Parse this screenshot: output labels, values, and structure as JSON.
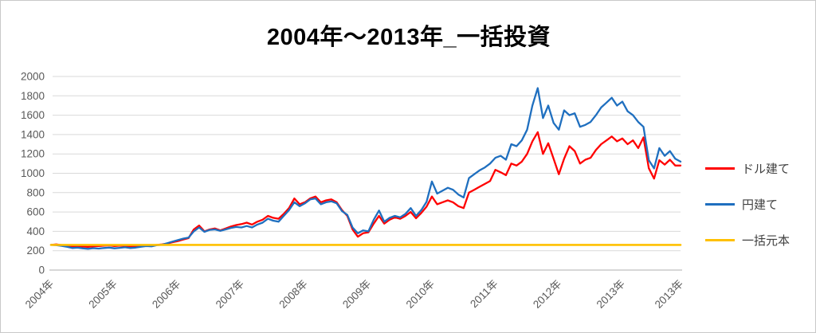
{
  "title": "2004年～2013年_一括投資",
  "legend": [
    {
      "id": "usd",
      "label": "ドル建て",
      "color": "#ff0000"
    },
    {
      "id": "jpy",
      "label": "円建て",
      "color": "#1f6fbf"
    },
    {
      "id": "principal",
      "label": "一括元本",
      "color": "#ffc000"
    }
  ],
  "colors": {
    "gridline": "#d9d9d9",
    "axis_line": "#bfbfbf",
    "axis_text": "#595959",
    "legend_text": "#404040",
    "frame_border": "#c9c9c9",
    "background": "#ffffff"
  },
  "chart_data": {
    "type": "line",
    "title": "2004年～2013年_一括投資",
    "xlabel": "",
    "ylabel": "",
    "ylim": [
      0,
      2000
    ],
    "y_tick_step": 200,
    "y_tick_labels": [
      "0",
      "200",
      "400",
      "600",
      "800",
      "1000",
      "1200",
      "1400",
      "1600",
      "1800",
      "2000"
    ],
    "grid": true,
    "legend_position": "right",
    "x_start": "2004-01",
    "x_end": "2013-12",
    "points_per_series": 120,
    "x_ticks": [
      {
        "m": 0,
        "label": "2004年"
      },
      {
        "m": 12,
        "label": "2005年"
      },
      {
        "m": 24,
        "label": "2006年"
      },
      {
        "m": 36,
        "label": "2007年"
      },
      {
        "m": 48,
        "label": "2008年"
      },
      {
        "m": 60,
        "label": "2009年"
      },
      {
        "m": 72,
        "label": "2010年"
      },
      {
        "m": 84,
        "label": "2011年"
      },
      {
        "m": 96,
        "label": "2012年"
      },
      {
        "m": 108,
        "label": "2013年"
      },
      {
        "m": 119,
        "label": "2013年"
      }
    ],
    "series": [
      {
        "name": "ドル建て",
        "color": "#ff0000",
        "stroke_width": 2.3,
        "values": [
          260,
          265,
          258,
          250,
          245,
          248,
          243,
          240,
          245,
          248,
          252,
          255,
          248,
          252,
          250,
          243,
          246,
          250,
          255,
          252,
          260,
          265,
          275,
          288,
          300,
          315,
          330,
          420,
          460,
          400,
          420,
          430,
          410,
          430,
          450,
          465,
          475,
          490,
          470,
          500,
          520,
          560,
          540,
          530,
          580,
          640,
          740,
          680,
          700,
          740,
          760,
          700,
          720,
          730,
          700,
          620,
          560,
          420,
          345,
          380,
          390,
          480,
          560,
          480,
          520,
          545,
          530,
          560,
          600,
          535,
          590,
          655,
          760,
          680,
          700,
          720,
          700,
          660,
          640,
          800,
          830,
          860,
          890,
          920,
          1035,
          1010,
          980,
          1100,
          1080,
          1120,
          1200,
          1330,
          1425,
          1200,
          1310,
          1150,
          990,
          1150,
          1280,
          1230,
          1100,
          1140,
          1160,
          1240,
          1300,
          1340,
          1380,
          1330,
          1360,
          1300,
          1340,
          1260,
          1370,
          1052,
          945,
          1135,
          1090,
          1140,
          1080,
          1080
        ]
      },
      {
        "name": "円建て",
        "color": "#1f6fbf",
        "stroke_width": 2.3,
        "values": [
          260,
          258,
          250,
          240,
          228,
          232,
          225,
          220,
          226,
          222,
          228,
          232,
          225,
          230,
          235,
          228,
          232,
          240,
          248,
          245,
          258,
          262,
          278,
          295,
          310,
          325,
          335,
          400,
          440,
          395,
          415,
          420,
          405,
          420,
          435,
          445,
          440,
          455,
          440,
          470,
          490,
          530,
          510,
          500,
          560,
          620,
          700,
          660,
          690,
          730,
          740,
          680,
          700,
          710,
          690,
          610,
          570,
          440,
          380,
          410,
          400,
          520,
          615,
          500,
          540,
          560,
          545,
          580,
          640,
          560,
          620,
          705,
          915,
          790,
          820,
          850,
          830,
          780,
          750,
          950,
          990,
          1030,
          1060,
          1100,
          1160,
          1180,
          1140,
          1300,
          1280,
          1340,
          1450,
          1700,
          1880,
          1570,
          1700,
          1520,
          1450,
          1650,
          1600,
          1620,
          1480,
          1500,
          1530,
          1600,
          1680,
          1730,
          1780,
          1700,
          1740,
          1640,
          1600,
          1530,
          1480,
          1135,
          1050,
          1260,
          1180,
          1230,
          1150,
          1120
        ]
      },
      {
        "name": "一括元本",
        "color": "#ffc000",
        "stroke_width": 2.6,
        "constant": 260
      }
    ]
  }
}
